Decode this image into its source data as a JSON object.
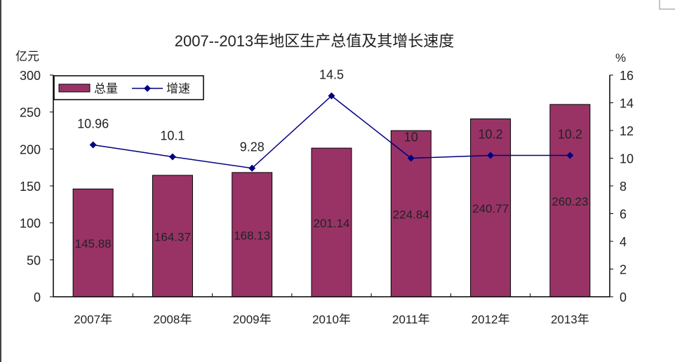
{
  "chart_data": {
    "type": "bar+line",
    "title": "2007--2013年地区生产总值及其增长速度",
    "categories": [
      "2007年",
      "2008年",
      "2009年",
      "2010年",
      "2011年",
      "2012年",
      "2013年"
    ],
    "ylabel_left": "亿元",
    "ylabel_right": "%",
    "ylim_left": [
      0,
      300
    ],
    "yticks_left": [
      0,
      50,
      100,
      150,
      200,
      250,
      300
    ],
    "ylim_right": [
      0,
      16
    ],
    "yticks_right": [
      0,
      2,
      4,
      6,
      8,
      10,
      12,
      14,
      16
    ],
    "grid": false,
    "legend_position": "top-left",
    "series": [
      {
        "name": "总量",
        "type": "bar",
        "axis": "left",
        "color": "#993366",
        "values": [
          145.88,
          164.37,
          168.13,
          201.14,
          224.84,
          240.77,
          260.23
        ],
        "labels": [
          "145.88",
          "164.37",
          "168.13",
          "201.14",
          "224.84",
          "240.77",
          "260.23"
        ]
      },
      {
        "name": "增速",
        "type": "line",
        "axis": "right",
        "color": "#000080",
        "marker": "diamond",
        "values": [
          10.96,
          10.1,
          9.28,
          14.5,
          10,
          10.2,
          10.2
        ],
        "labels": [
          "10.96",
          "10.1",
          "9.28",
          "14.5",
          "10",
          "10.2",
          "10.2"
        ]
      }
    ]
  }
}
